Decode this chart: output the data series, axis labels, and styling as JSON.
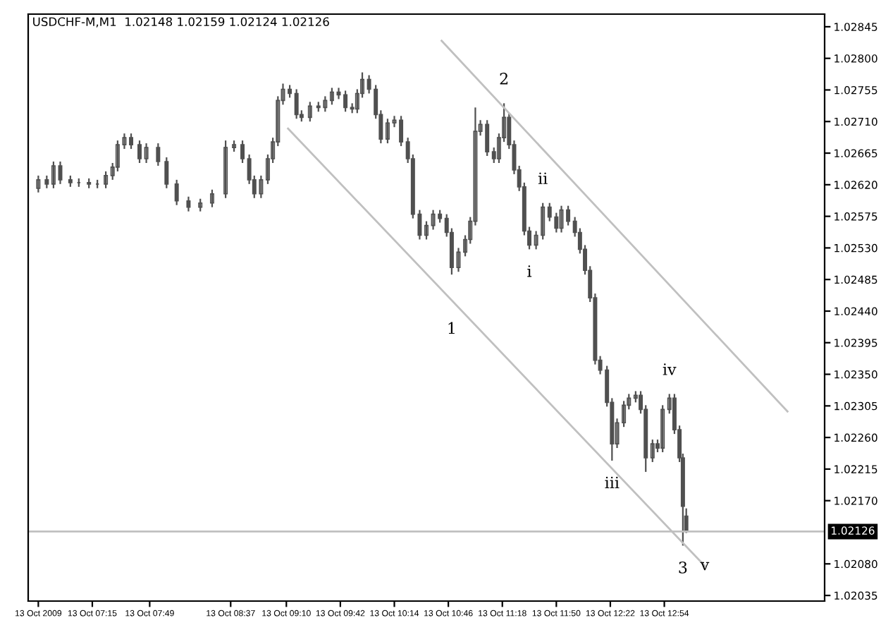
{
  "chart_data": {
    "type": "candlestick",
    "title": "USDCHF-M,M1  1.02148 1.02159 1.02124 1.02126",
    "color": "#505050",
    "x": [
      "2009-10-13T06:43",
      "2009-10-13T06:48",
      "2009-10-13T06:52",
      "2009-10-13T06:56",
      "2009-10-13T07:02",
      "2009-10-13T07:07",
      "2009-10-13T07:13",
      "2009-10-13T07:18",
      "2009-10-13T07:23",
      "2009-10-13T07:27",
      "2009-10-13T07:30",
      "2009-10-13T07:34",
      "2009-10-13T07:38",
      "2009-10-13T07:43",
      "2009-10-13T07:47",
      "2009-10-13T07:54",
      "2009-10-13T07:59",
      "2009-10-13T08:05",
      "2009-10-13T08:12",
      "2009-10-13T08:19",
      "2009-10-13T08:26",
      "2009-10-13T08:34",
      "2009-10-13T08:39",
      "2009-10-13T08:44",
      "2009-10-13T08:48",
      "2009-10-13T08:51",
      "2009-10-13T08:55",
      "2009-10-13T08:59",
      "2009-10-13T09:02",
      "2009-10-13T09:05",
      "2009-10-13T09:08",
      "2009-10-13T09:12",
      "2009-10-13T09:16",
      "2009-10-13T09:19",
      "2009-10-13T09:24",
      "2009-10-13T09:29",
      "2009-10-13T09:33",
      "2009-10-13T09:37",
      "2009-10-13T09:41",
      "2009-10-13T09:45",
      "2009-10-13T09:49",
      "2009-10-13T09:52",
      "2009-10-13T09:55",
      "2009-10-13T09:59",
      "2009-10-13T10:03",
      "2009-10-13T10:06",
      "2009-10-13T10:10",
      "2009-10-13T10:14",
      "2009-10-13T10:18",
      "2009-10-13T10:22",
      "2009-10-13T10:25",
      "2009-10-13T10:29",
      "2009-10-13T10:33",
      "2009-10-13T10:37",
      "2009-10-13T10:41",
      "2009-10-13T10:45",
      "2009-10-13T10:48",
      "2009-10-13T10:52",
      "2009-10-13T10:56",
      "2009-10-13T10:59",
      "2009-10-13T11:02",
      "2009-10-13T11:05",
      "2009-10-13T11:09",
      "2009-10-13T11:13",
      "2009-10-13T11:16",
      "2009-10-13T11:19",
      "2009-10-13T11:22",
      "2009-10-13T11:25",
      "2009-10-13T11:28",
      "2009-10-13T11:31",
      "2009-10-13T11:34",
      "2009-10-13T11:38",
      "2009-10-13T11:42",
      "2009-10-13T11:46",
      "2009-10-13T11:50",
      "2009-10-13T11:53",
      "2009-10-13T11:57",
      "2009-10-13T12:01",
      "2009-10-13T12:04",
      "2009-10-13T12:07",
      "2009-10-13T12:10",
      "2009-10-13T12:13",
      "2009-10-13T12:16",
      "2009-10-13T12:20",
      "2009-10-13T12:23",
      "2009-10-13T12:26",
      "2009-10-13T12:30",
      "2009-10-13T12:33",
      "2009-10-13T12:37",
      "2009-10-13T12:40",
      "2009-10-13T12:43",
      "2009-10-13T12:47",
      "2009-10-13T12:50",
      "2009-10-13T12:53",
      "2009-10-13T12:57",
      "2009-10-13T13:00",
      "2009-10-13T13:03",
      "2009-10-13T13:05",
      "2009-10-13T13:07"
    ],
    "ohlc": [
      [
        1.02615,
        1.02633,
        1.02609,
        1.02627
      ],
      [
        1.02627,
        1.02633,
        1.02615,
        1.02621
      ],
      [
        1.02621,
        1.02653,
        1.02615,
        1.02647
      ],
      [
        1.02647,
        1.02653,
        1.02621,
        1.02627
      ],
      [
        1.02627,
        1.02633,
        1.02617,
        1.02623
      ],
      [
        1.02623,
        1.02629,
        1.02617,
        1.02623
      ],
      [
        1.02623,
        1.02629,
        1.02615,
        1.02621
      ],
      [
        1.02621,
        1.02627,
        1.02615,
        1.02621
      ],
      [
        1.02621,
        1.02639,
        1.02615,
        1.02633
      ],
      [
        1.02633,
        1.02651,
        1.02627,
        1.02645
      ],
      [
        1.02645,
        1.02683,
        1.02639,
        1.02677
      ],
      [
        1.02677,
        1.02693,
        1.02671,
        1.02687
      ],
      [
        1.02687,
        1.02693,
        1.02671,
        1.02677
      ],
      [
        1.02677,
        1.02683,
        1.02651,
        1.02657
      ],
      [
        1.02657,
        1.02679,
        1.02651,
        1.02673
      ],
      [
        1.02673,
        1.02679,
        1.02647,
        1.02653
      ],
      [
        1.02653,
        1.02659,
        1.02615,
        1.02621
      ],
      [
        1.02621,
        1.02627,
        1.02591,
        1.02597
      ],
      [
        1.02597,
        1.02603,
        1.02582,
        1.02588
      ],
      [
        1.02588,
        1.026,
        1.02582,
        1.02594
      ],
      [
        1.02594,
        1.02613,
        1.02588,
        1.02607
      ],
      [
        1.02607,
        1.02683,
        1.02601,
        1.02673
      ],
      [
        1.02673,
        1.02683,
        1.02667,
        1.02677
      ],
      [
        1.02677,
        1.02683,
        1.02651,
        1.02657
      ],
      [
        1.02657,
        1.02663,
        1.02621,
        1.02627
      ],
      [
        1.02627,
        1.02633,
        1.02601,
        1.02607
      ],
      [
        1.02607,
        1.02633,
        1.02601,
        1.02627
      ],
      [
        1.02627,
        1.02663,
        1.02621,
        1.02657
      ],
      [
        1.02657,
        1.02687,
        1.02651,
        1.02681
      ],
      [
        1.02681,
        1.02746,
        1.02675,
        1.0274
      ],
      [
        1.0274,
        1.02764,
        1.02734,
        1.02756
      ],
      [
        1.02756,
        1.02762,
        1.02744,
        1.0275
      ],
      [
        1.0275,
        1.02756,
        1.02714,
        1.0272
      ],
      [
        1.0272,
        1.02726,
        1.0271,
        1.02716
      ],
      [
        1.02716,
        1.02738,
        1.0271,
        1.02732
      ],
      [
        1.02732,
        1.02738,
        1.02724,
        1.0273
      ],
      [
        1.0273,
        1.02746,
        1.02724,
        1.0274
      ],
      [
        1.0274,
        1.02758,
        1.02734,
        1.02752
      ],
      [
        1.02752,
        1.02758,
        1.02742,
        1.02748
      ],
      [
        1.02748,
        1.02754,
        1.02724,
        1.0273
      ],
      [
        1.0273,
        1.02736,
        1.02722,
        1.02728
      ],
      [
        1.02728,
        1.02756,
        1.02722,
        1.0275
      ],
      [
        1.0275,
        1.0278,
        1.02744,
        1.0277
      ],
      [
        1.0277,
        1.02776,
        1.0275,
        1.02756
      ],
      [
        1.02756,
        1.02762,
        1.02714,
        1.0272
      ],
      [
        1.0272,
        1.02726,
        1.02679,
        1.02685
      ],
      [
        1.02685,
        1.02714,
        1.02679,
        1.02708
      ],
      [
        1.02708,
        1.02718,
        1.02702,
        1.02712
      ],
      [
        1.02712,
        1.02718,
        1.02675,
        1.02681
      ],
      [
        1.02681,
        1.02687,
        1.02651,
        1.02657
      ],
      [
        1.02657,
        1.02663,
        1.02572,
        1.02578
      ],
      [
        1.02578,
        1.02584,
        1.02542,
        1.02548
      ],
      [
        1.02548,
        1.02568,
        1.02542,
        1.02562
      ],
      [
        1.02562,
        1.02584,
        1.02556,
        1.02578
      ],
      [
        1.02578,
        1.02584,
        1.02566,
        1.02572
      ],
      [
        1.02572,
        1.02578,
        1.02546,
        1.02552
      ],
      [
        1.02552,
        1.02558,
        1.02492,
        1.02502
      ],
      [
        1.02502,
        1.0253,
        1.02496,
        1.02524
      ],
      [
        1.02524,
        1.02548,
        1.02518,
        1.02542
      ],
      [
        1.02542,
        1.02574,
        1.02536,
        1.02568
      ],
      [
        1.02568,
        1.0273,
        1.02562,
        1.02696
      ],
      [
        1.02696,
        1.02712,
        1.0269,
        1.02706
      ],
      [
        1.02706,
        1.02712,
        1.02661,
        1.02667
      ],
      [
        1.02667,
        1.02673,
        1.02651,
        1.02657
      ],
      [
        1.02657,
        1.02693,
        1.02651,
        1.02687
      ],
      [
        1.02687,
        1.02736,
        1.02681,
        1.02716
      ],
      [
        1.02716,
        1.02722,
        1.02671,
        1.02677
      ],
      [
        1.02677,
        1.02683,
        1.02635,
        1.02641
      ],
      [
        1.02641,
        1.02647,
        1.02611,
        1.02617
      ],
      [
        1.02617,
        1.02623,
        1.02548,
        1.02554
      ],
      [
        1.02554,
        1.0256,
        1.02528,
        1.02534
      ],
      [
        1.02534,
        1.02554,
        1.02528,
        1.02548
      ],
      [
        1.02548,
        1.02594,
        1.02542,
        1.02588
      ],
      [
        1.02588,
        1.02594,
        1.02568,
        1.02574
      ],
      [
        1.02574,
        1.0258,
        1.02552,
        1.02558
      ],
      [
        1.02558,
        1.0259,
        1.02552,
        1.02584
      ],
      [
        1.02584,
        1.0259,
        1.02562,
        1.02568
      ],
      [
        1.02568,
        1.02574,
        1.02546,
        1.02552
      ],
      [
        1.02552,
        1.02558,
        1.02522,
        1.02528
      ],
      [
        1.02528,
        1.02534,
        1.02492,
        1.02498
      ],
      [
        1.02498,
        1.02504,
        1.02453,
        1.02459
      ],
      [
        1.02459,
        1.02465,
        1.02364,
        1.0237
      ],
      [
        1.0237,
        1.02376,
        1.0235,
        1.02356
      ],
      [
        1.02356,
        1.02362,
        1.02304,
        1.0231
      ],
      [
        1.0231,
        1.02316,
        1.02227,
        1.02251
      ],
      [
        1.02251,
        1.02287,
        1.02245,
        1.02281
      ],
      [
        1.02281,
        1.02312,
        1.02275,
        1.02306
      ],
      [
        1.02306,
        1.02322,
        1.023,
        1.02316
      ],
      [
        1.02316,
        1.02326,
        1.0231,
        1.0232
      ],
      [
        1.0232,
        1.02326,
        1.02294,
        1.023
      ],
      [
        1.023,
        1.02306,
        1.02211,
        1.02231
      ],
      [
        1.02231,
        1.02257,
        1.02225,
        1.02251
      ],
      [
        1.02251,
        1.02257,
        1.02239,
        1.02245
      ],
      [
        1.02245,
        1.02306,
        1.02239,
        1.023
      ],
      [
        1.023,
        1.02322,
        1.02294,
        1.02316
      ],
      [
        1.02316,
        1.02322,
        1.02265,
        1.02271
      ],
      [
        1.02271,
        1.02277,
        1.02225,
        1.02231
      ],
      [
        1.02231,
        1.02237,
        1.02106,
        1.02162
      ],
      [
        1.02148,
        1.02159,
        1.02124,
        1.02126
      ]
    ],
    "series": [
      {
        "type": "line",
        "color": "#c0c0c0",
        "x": [
          "2009-10-13T09:11",
          "2009-10-13T13:18"
        ],
        "values": [
          1.027,
          1.02077
        ]
      },
      {
        "type": "line",
        "color": "#c0c0c0",
        "x": [
          "2009-10-13T10:42",
          "2009-10-13T14:07"
        ],
        "values": [
          1.02825,
          1.02297
        ]
      }
    ],
    "ref_lines": [
      {
        "axis": "y",
        "value": 1.02126,
        "label": "1.02126",
        "color": "#c0c0c0"
      }
    ],
    "annotations": [
      {
        "text": "1",
        "x": "2009-10-13T10:48",
        "y": 1.02447
      },
      {
        "text": "2",
        "x": "2009-10-13T11:19",
        "y": 1.02736
      },
      {
        "text": "3",
        "x": "2009-10-13T13:05",
        "y": 1.02106
      },
      {
        "text": "i",
        "x": "2009-10-13T11:34",
        "y": 1.02528
      },
      {
        "text": "ii",
        "x": "2009-10-13T11:42",
        "y": 1.02594
      },
      {
        "text": "iii",
        "x": "2009-10-13T12:23",
        "y": 1.02227
      },
      {
        "text": "iv",
        "x": "2009-10-13T12:57",
        "y": 1.02322
      },
      {
        "text": "v",
        "x": "2009-10-13T13:18",
        "y": 1.02077
      }
    ],
    "xlim": [
      "2009-10-13T06:37",
      "2009-10-13T14:29"
    ],
    "xticks": [
      {
        "value": "2009-10-13T06:43",
        "label": "13 Oct 2009"
      },
      {
        "value": "2009-10-13T07:15",
        "label": "13 Oct 07:15"
      },
      {
        "value": "2009-10-13T07:49",
        "label": "13 Oct 07:49"
      },
      {
        "value": "2009-10-13T08:37",
        "label": "13 Oct 08:37"
      },
      {
        "value": "2009-10-13T09:10",
        "label": "13 Oct 09:10"
      },
      {
        "value": "2009-10-13T09:42",
        "label": "13 Oct 09:42"
      },
      {
        "value": "2009-10-13T10:14",
        "label": "13 Oct 10:14"
      },
      {
        "value": "2009-10-13T10:46",
        "label": "13 Oct 10:46"
      },
      {
        "value": "2009-10-13T11:18",
        "label": "13 Oct 11:18"
      },
      {
        "value": "2009-10-13T11:50",
        "label": "13 Oct 11:50"
      },
      {
        "value": "2009-10-13T12:22",
        "label": "13 Oct 12:22"
      },
      {
        "value": "2009-10-13T12:54",
        "label": "13 Oct 12:54"
      }
    ],
    "ylim": [
      1.02027,
      1.02863
    ],
    "yticks": [
      1.02035,
      {
        "value": 1.0208,
        "label": "1.02080"
      },
      {
        "value": 1.0217,
        "label": "1.02170"
      },
      1.02215,
      {
        "value": 1.0226,
        "label": "1.02260"
      },
      1.02305,
      {
        "value": 1.0235,
        "label": "1.02350"
      },
      1.02395,
      {
        "value": 1.0244,
        "label": "1.02440"
      },
      1.02485,
      {
        "value": 1.0253,
        "label": "1.02530"
      },
      1.02575,
      {
        "value": 1.0262,
        "label": "1.02620"
      },
      1.02665,
      {
        "value": 1.0271,
        "label": "1.02710"
      },
      1.02755,
      {
        "value": 1.028,
        "label": "1.02800"
      },
      1.02845
    ],
    "grid": false,
    "legend": false
  }
}
